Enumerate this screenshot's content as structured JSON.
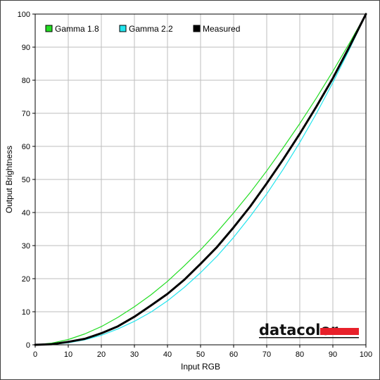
{
  "chart_data": {
    "type": "line",
    "xlabel": "Input RGB",
    "ylabel": "Output Brightness",
    "xlim": [
      0,
      100
    ],
    "ylim": [
      0,
      100
    ],
    "x_ticks": [
      0,
      10,
      20,
      30,
      40,
      50,
      60,
      70,
      80,
      90,
      100
    ],
    "y_ticks": [
      0,
      10,
      20,
      30,
      40,
      50,
      60,
      70,
      80,
      90,
      100
    ],
    "grid": true,
    "legend_position": "top-left",
    "series": [
      {
        "name": "Gamma 1.8",
        "color": "#22dd22",
        "x": [
          0,
          5,
          10,
          15,
          20,
          25,
          30,
          35,
          40,
          45,
          50,
          55,
          60,
          65,
          70,
          75,
          80,
          85,
          90,
          95,
          100
        ],
        "values": [
          0,
          0.5,
          1.6,
          3.3,
          5.5,
          8.3,
          11.5,
          15.1,
          19.2,
          23.8,
          28.7,
          34.1,
          39.9,
          46.0,
          52.6,
          59.6,
          66.9,
          74.6,
          82.7,
          91.2,
          100
        ]
      },
      {
        "name": "Gamma 2.2",
        "color": "#22e5ee",
        "x": [
          0,
          5,
          10,
          15,
          20,
          25,
          30,
          35,
          40,
          45,
          50,
          55,
          60,
          65,
          70,
          75,
          80,
          85,
          90,
          95,
          100
        ],
        "values": [
          0,
          0.1,
          0.6,
          1.5,
          2.9,
          4.8,
          7.1,
          9.9,
          13.3,
          17.3,
          21.8,
          26.8,
          32.5,
          38.8,
          45.6,
          53.1,
          61.2,
          69.9,
          79.3,
          89.3,
          100
        ]
      },
      {
        "name": "Measured",
        "color": "#000000",
        "x": [
          0,
          5,
          10,
          15,
          20,
          25,
          30,
          35,
          40,
          45,
          50,
          55,
          60,
          65,
          70,
          75,
          80,
          85,
          90,
          95,
          100
        ],
        "values": [
          0,
          0.2,
          0.9,
          1.8,
          3.5,
          5.6,
          8.5,
          11.9,
          15.4,
          19.6,
          24.5,
          29.6,
          35.5,
          41.8,
          48.8,
          56.1,
          63.8,
          72.0,
          80.6,
          90.1,
          100
        ]
      }
    ]
  },
  "logo": {
    "text": "datacolor",
    "accent_color": "#e8202a"
  }
}
